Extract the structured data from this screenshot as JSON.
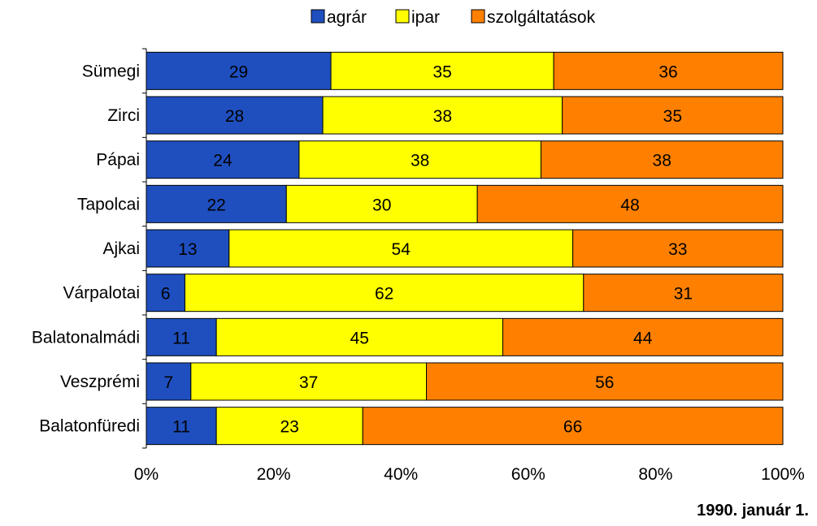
{
  "chart_data": {
    "type": "bar",
    "orientation": "horizontal",
    "stacked": "percent",
    "categories": [
      "Sümegi",
      "Zirci",
      "Pápai",
      "Tapolcai",
      "Ajkai",
      "Várpalotai",
      "Balatonalmádi",
      "Veszprémi",
      "Balatonfüredi"
    ],
    "series": [
      {
        "name": "agrár",
        "color": "#1f4fbf",
        "values": [
          29,
          28,
          24,
          22,
          13,
          6,
          11,
          7,
          11
        ]
      },
      {
        "name": "ipar",
        "color": "#ffff00",
        "values": [
          35,
          38,
          38,
          30,
          54,
          62,
          45,
          37,
          23
        ]
      },
      {
        "name": "szolgáltatások",
        "color": "#ff8000",
        "values": [
          36,
          35,
          38,
          48,
          33,
          31,
          44,
          56,
          66
        ]
      }
    ],
    "x_ticks": [
      "0%",
      "20%",
      "40%",
      "60%",
      "80%",
      "100%"
    ],
    "xlim": [
      0,
      100
    ],
    "legend_position": "top",
    "grid": false
  },
  "note": "1990. január 1."
}
